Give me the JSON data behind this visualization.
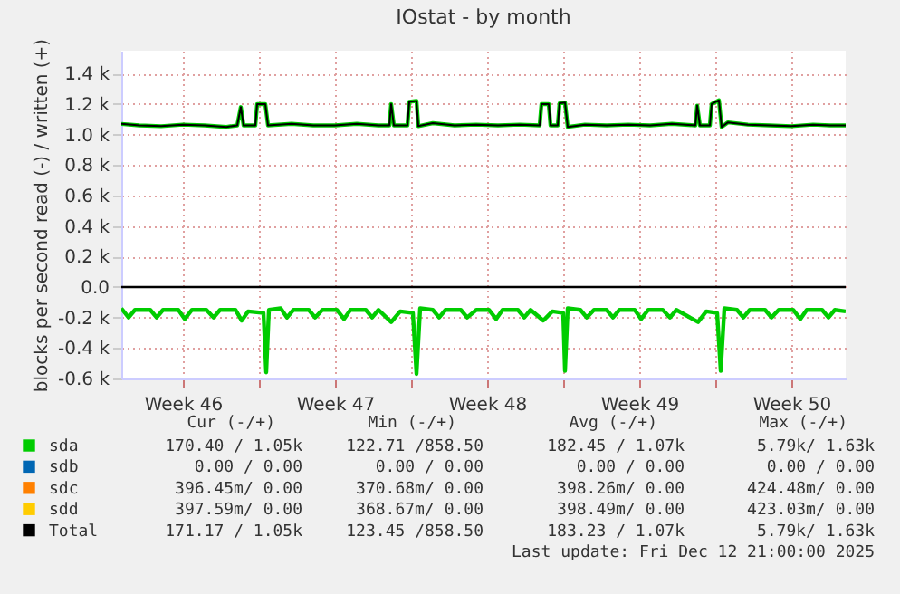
{
  "chart_data": {
    "type": "line",
    "title": "IOstat - by month",
    "ylabel": "blocks per second read (-) / written (+)",
    "xlim": [
      "2025-11-10T16:00",
      "2025-12-14T00:00"
    ],
    "xticks": [
      {
        "value": "2025-11-13T12:00",
        "label": "Week 46"
      },
      {
        "value": "2025-11-17",
        "label": null
      },
      {
        "value": "2025-11-20T12:00",
        "label": "Week 47"
      },
      {
        "value": "2025-11-24",
        "label": null
      },
      {
        "value": "2025-11-27T12:00",
        "label": "Week 48"
      },
      {
        "value": "2025-12-01",
        "label": null
      },
      {
        "value": "2025-12-04T12:00",
        "label": "Week 49"
      },
      {
        "value": "2025-12-08",
        "label": null
      },
      {
        "value": "2025-12-11T12:00",
        "label": "Week 50"
      }
    ],
    "ylim": [
      -600,
      1550
    ],
    "yticks": [
      {
        "value": -600,
        "label": "-0.6 k"
      },
      {
        "value": -400,
        "label": "-0.4 k"
      },
      {
        "value": -200,
        "label": "-0.2 k"
      },
      {
        "value": 0,
        "label": "0.0"
      },
      {
        "value": 200,
        "label": "0.2 k"
      },
      {
        "value": 400,
        "label": "0.4 k"
      },
      {
        "value": 600,
        "label": "0.6 k"
      },
      {
        "value": 800,
        "label": "0.8 k"
      },
      {
        "value": 1000,
        "label": "1.0 k"
      },
      {
        "value": 1200,
        "label": "1.2 k"
      },
      {
        "value": 1400,
        "label": "1.4 k"
      }
    ],
    "grid": true,
    "legend": "bottom",
    "ref_lines": [
      {
        "axis": "y",
        "value": 0,
        "color": "#000000"
      }
    ],
    "series": [
      {
        "name": "sda",
        "color": "#00cc00",
        "x": [
          "2025-11-10T16:00",
          "2025-11-11T12:00",
          "2025-11-12T12:00",
          "2025-11-13T12:00",
          "2025-11-14T12:00",
          "2025-11-15T12:00",
          "2025-11-16T00:00",
          "2025-11-16T04:00",
          "2025-11-16T07:00",
          "2025-11-16T20:00",
          "2025-11-16T22:00",
          "2025-11-17T07:00",
          "2025-11-17T10:00",
          "2025-11-18T12:00",
          "2025-11-19T12:00",
          "2025-11-20T12:00",
          "2025-11-21T12:00",
          "2025-11-22T12:00",
          "2025-11-23T00:00",
          "2025-11-23T02:00",
          "2025-11-23T05:00",
          "2025-11-23T20:00",
          "2025-11-23T22:00",
          "2025-11-24T06:00",
          "2025-11-24T08:00",
          "2025-11-25T00:00",
          "2025-11-26T00:00",
          "2025-11-27T00:00",
          "2025-11-28T00:00",
          "2025-11-29T00:00",
          "2025-11-29T22:00",
          "2025-11-30T00:00",
          "2025-11-30T08:00",
          "2025-11-30T10:00",
          "2025-11-30T18:00",
          "2025-11-30T20:00",
          "2025-12-01T02:00",
          "2025-12-01T05:00",
          "2025-12-02T00:00",
          "2025-12-03T00:00",
          "2025-12-04T00:00",
          "2025-12-05T00:00",
          "2025-12-06T00:00",
          "2025-12-07T02:00",
          "2025-12-07T04:00",
          "2025-12-07T07:00",
          "2025-12-07T18:00",
          "2025-12-07T20:00",
          "2025-12-08T04:00",
          "2025-12-08T07:00",
          "2025-12-08T14:00",
          "2025-12-09T12:00",
          "2025-12-10T12:00",
          "2025-12-11T12:00",
          "2025-12-12T12:00",
          "2025-12-13T07:00",
          "2025-12-14T00:00"
        ],
        "values": [
          1070,
          1060,
          1055,
          1065,
          1060,
          1050,
          1060,
          1180,
          1060,
          1060,
          1200,
          1200,
          1060,
          1070,
          1060,
          1060,
          1070,
          1060,
          1060,
          1200,
          1060,
          1060,
          1215,
          1220,
          1055,
          1075,
          1060,
          1065,
          1060,
          1065,
          1060,
          1200,
          1200,
          1060,
          1060,
          1205,
          1210,
          1050,
          1065,
          1060,
          1065,
          1060,
          1070,
          1060,
          1190,
          1060,
          1060,
          1200,
          1225,
          1050,
          1080,
          1065,
          1060,
          1055,
          1065,
          1060,
          1060
        ]
      },
      {
        "color": "#00cc00",
        "x": [
          "2025-11-10T16:00",
          "2025-11-11T00:00",
          "2025-11-11T07:00",
          "2025-11-12T00:00",
          "2025-11-12T07:00",
          "2025-11-12T14:00",
          "2025-11-13T07:00",
          "2025-11-13T14:00",
          "2025-11-13T22:00",
          "2025-11-14T14:00",
          "2025-11-14T22:00",
          "2025-11-15T05:00",
          "2025-11-15T22:00",
          "2025-11-16T05:00",
          "2025-11-16T12:00",
          "2025-11-17T05:00",
          "2025-11-17T08:00",
          "2025-11-17T11:00",
          "2025-11-18T00:00",
          "2025-11-18T07:00",
          "2025-11-18T14:00",
          "2025-11-19T07:00",
          "2025-11-19T14:00",
          "2025-11-19T22:00",
          "2025-11-20T14:00",
          "2025-11-20T22:00",
          "2025-11-21T05:00",
          "2025-11-21T22:00",
          "2025-11-22T05:00",
          "2025-11-22T12:00",
          "2025-11-23T02:00",
          "2025-11-23T12:00",
          "2025-11-24T02:00",
          "2025-11-24T06:00",
          "2025-11-24T10:00",
          "2025-11-25T00:00",
          "2025-11-25T07:00",
          "2025-11-25T14:00",
          "2025-11-26T07:00",
          "2025-11-26T14:00",
          "2025-11-27T00:00",
          "2025-11-27T14:00",
          "2025-11-27T22:00",
          "2025-11-28T05:00",
          "2025-11-28T22:00",
          "2025-11-29T05:00",
          "2025-11-29T12:00",
          "2025-11-30T02:00",
          "2025-11-30T12:00",
          "2025-12-01T00:00",
          "2025-12-01T02:00",
          "2025-12-01T05:00",
          "2025-12-01T19:00",
          "2025-12-02T02:00",
          "2025-12-02T10:00",
          "2025-12-03T00:00",
          "2025-12-03T07:00",
          "2025-12-03T14:00",
          "2025-12-04T07:00",
          "2025-12-04T14:00",
          "2025-12-04T22:00",
          "2025-12-05T14:00",
          "2025-12-05T22:00",
          "2025-12-06T05:00",
          "2025-12-07T05:00",
          "2025-12-07T14:00",
          "2025-12-08T02:00",
          "2025-12-08T06:00",
          "2025-12-08T10:00",
          "2025-12-09T00:00",
          "2025-12-09T07:00",
          "2025-12-09T14:00",
          "2025-12-10T07:00",
          "2025-12-10T14:00",
          "2025-12-10T22:00",
          "2025-12-11T14:00",
          "2025-12-11T22:00",
          "2025-12-12T05:00",
          "2025-12-12T22:00",
          "2025-12-13T05:00",
          "2025-12-13T12:00",
          "2025-12-14T00:00"
        ],
        "values": [
          -140,
          -200,
          -150,
          -150,
          -200,
          -150,
          -150,
          -210,
          -150,
          -150,
          -200,
          -150,
          -150,
          -220,
          -160,
          -170,
          -560,
          -150,
          -140,
          -200,
          -150,
          -150,
          -200,
          -150,
          -150,
          -210,
          -150,
          -150,
          -200,
          -150,
          -230,
          -160,
          -170,
          -570,
          -140,
          -150,
          -200,
          -150,
          -150,
          -200,
          -150,
          -150,
          -210,
          -150,
          -150,
          -200,
          -150,
          -220,
          -160,
          -170,
          -550,
          -140,
          -150,
          -200,
          -150,
          -150,
          -200,
          -150,
          -150,
          -210,
          -150,
          -150,
          -200,
          -150,
          -230,
          -160,
          -170,
          -550,
          -140,
          -150,
          -200,
          -150,
          -150,
          -200,
          -150,
          -150,
          -210,
          -150,
          -150,
          -200,
          -150,
          -160
        ]
      },
      {
        "name": "sdb",
        "color": "#0066b3"
      },
      {
        "name": "sdc",
        "color": "#ff8000"
      },
      {
        "name": "sdd",
        "color": "#ffcc00"
      },
      {
        "name": "Total",
        "color": "#000000",
        "x": [
          "2025-11-10T16:00",
          "2025-11-11T12:00",
          "2025-11-12T12:00",
          "2025-11-13T12:00",
          "2025-11-14T12:00",
          "2025-11-15T12:00",
          "2025-11-16T00:00",
          "2025-11-16T04:00",
          "2025-11-16T07:00",
          "2025-11-16T20:00",
          "2025-11-16T22:00",
          "2025-11-17T07:00",
          "2025-11-17T10:00",
          "2025-11-18T12:00",
          "2025-11-19T12:00",
          "2025-11-20T12:00",
          "2025-11-21T12:00",
          "2025-11-22T12:00",
          "2025-11-23T00:00",
          "2025-11-23T02:00",
          "2025-11-23T05:00",
          "2025-11-23T20:00",
          "2025-11-23T22:00",
          "2025-11-24T06:00",
          "2025-11-24T08:00",
          "2025-11-25T00:00",
          "2025-11-26T00:00",
          "2025-11-27T00:00",
          "2025-11-28T00:00",
          "2025-11-29T00:00",
          "2025-11-29T22:00",
          "2025-11-30T00:00",
          "2025-11-30T08:00",
          "2025-11-30T10:00",
          "2025-11-30T18:00",
          "2025-11-30T20:00",
          "2025-12-01T02:00",
          "2025-12-01T05:00",
          "2025-12-02T00:00",
          "2025-12-03T00:00",
          "2025-12-04T00:00",
          "2025-12-05T00:00",
          "2025-12-06T00:00",
          "2025-12-07T02:00",
          "2025-12-07T04:00",
          "2025-12-07T07:00",
          "2025-12-07T18:00",
          "2025-12-07T20:00",
          "2025-12-08T04:00",
          "2025-12-08T07:00",
          "2025-12-08T14:00",
          "2025-12-09T12:00",
          "2025-12-10T12:00",
          "2025-12-11T12:00",
          "2025-12-12T12:00",
          "2025-12-13T07:00",
          "2025-12-14T00:00"
        ],
        "values": [
          1070,
          1060,
          1055,
          1065,
          1060,
          1050,
          1060,
          1180,
          1060,
          1060,
          1200,
          1200,
          1060,
          1070,
          1060,
          1060,
          1070,
          1060,
          1060,
          1200,
          1060,
          1060,
          1215,
          1220,
          1055,
          1075,
          1060,
          1065,
          1060,
          1065,
          1060,
          1200,
          1200,
          1060,
          1060,
          1205,
          1210,
          1050,
          1065,
          1060,
          1065,
          1060,
          1070,
          1060,
          1190,
          1060,
          1060,
          1200,
          1225,
          1050,
          1080,
          1065,
          1060,
          1055,
          1065,
          1060,
          1060
        ]
      }
    ],
    "annotations": [
      "Cur (-/+)",
      "Min (-/+)",
      "Avg (-/+)",
      "Max (-/+)",
      "170.40 /  1.05k",
      "122.71 /858.50",
      "182.45 /  1.07k",
      "5.79k/  1.63k",
      "0.00 /  0.00",
      "0.00 /  0.00",
      "0.00 /  0.00",
      "0.00 /  0.00",
      "396.45m/  0.00",
      "370.68m/  0.00",
      "398.26m/  0.00",
      "424.48m/  0.00",
      "397.59m/  0.00",
      "368.67m/  0.00",
      "398.49m/  0.00",
      "423.03m/  0.00",
      "171.17 /  1.05k",
      "123.45 /858.50",
      "183.23 /  1.07k",
      "5.79k/  1.63k",
      "Last update:  Fri Dec 12 21:00:00 2025"
    ]
  }
}
